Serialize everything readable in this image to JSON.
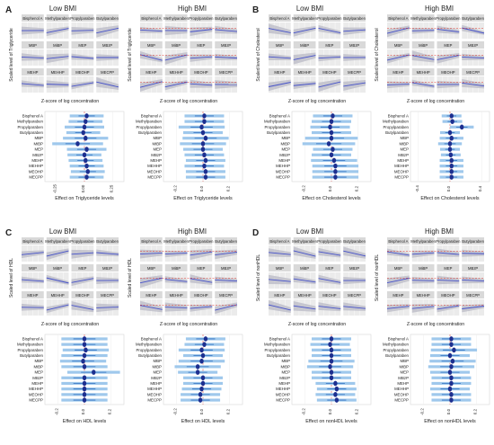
{
  "chart_data": {
    "type": "figure-grid",
    "chemicals": [
      "Bisphenol A",
      "Methylparaben",
      "Propylparaben",
      "Butylparaben",
      "MBP",
      "MiBP",
      "MEP",
      "MBzP",
      "MEHP",
      "MEHHP",
      "MEOHP",
      "MECPP"
    ],
    "groups": [
      "Low BMI",
      "High BMI"
    ],
    "ci_multiplier": 2.5,
    "panels": [
      {
        "letter": "A",
        "outcome": "Triglyceride",
        "scatter_ylabel": "Scaled level of Triglyceride",
        "scatter_xlabel": "Z-score of log concentration",
        "forest": [
          {
            "group": "Low BMI",
            "xlabel": "Effect on Triglyceride levels",
            "xticks": [
              "-0.25",
              "0.00",
              "0.25"
            ],
            "xlim": [
              -0.35,
              0.35
            ],
            "estimates": [
              0.02,
              0.01,
              0.0,
              -0.01,
              0.01,
              -0.06,
              0.02,
              0.0,
              0.01,
              0.02,
              0.03,
              0.02
            ],
            "se": [
              0.06,
              0.06,
              0.07,
              0.06,
              0.08,
              0.09,
              0.07,
              0.06,
              0.06,
              0.06,
              0.06,
              0.06
            ]
          },
          {
            "group": "High BMI",
            "xlabel": "Effect on Triglyceride levels",
            "xticks": [
              "-0.2",
              "0.0",
              "0.2"
            ],
            "xlim": [
              -0.3,
              0.3
            ],
            "estimates": [
              0.01,
              0.01,
              -0.01,
              0.0,
              0.02,
              0.0,
              0.0,
              0.01,
              0.02,
              0.01,
              0.02,
              0.02
            ],
            "se": [
              0.06,
              0.06,
              0.07,
              0.06,
              0.07,
              0.07,
              0.06,
              0.06,
              0.06,
              0.06,
              0.06,
              0.06
            ]
          }
        ]
      },
      {
        "letter": "B",
        "outcome": "Cholesterol",
        "scatter_ylabel": "Scaled level of Cholesterol",
        "scatter_xlabel": "Z-score of log concentration",
        "forest": [
          {
            "group": "Low BMI",
            "xlabel": "Effect on Cholesterol levels",
            "xticks": [
              "-0.2",
              "0.0",
              "0.2"
            ],
            "xlim": [
              -0.3,
              0.3
            ],
            "estimates": [
              0.01,
              0.0,
              -0.01,
              0.0,
              0.0,
              -0.02,
              0.01,
              0.0,
              0.02,
              0.03,
              0.03,
              0.03
            ],
            "se": [
              0.06,
              0.06,
              0.06,
              0.06,
              0.08,
              0.08,
              0.06,
              0.06,
              0.07,
              0.07,
              0.07,
              0.07
            ]
          },
          {
            "group": "High BMI",
            "xlabel": "Effect on Cholesterol levels",
            "xticks": [
              "-0.4",
              "0.0",
              "0.4"
            ],
            "xlim": [
              -0.5,
              0.5
            ],
            "estimates": [
              0.02,
              0.03,
              0.15,
              0.0,
              0.02,
              0.0,
              0.0,
              0.01,
              0.02,
              0.02,
              0.02,
              0.02
            ],
            "se": [
              0.05,
              0.05,
              0.06,
              0.05,
              0.06,
              0.06,
              0.05,
              0.05,
              0.06,
              0.06,
              0.06,
              0.06
            ]
          }
        ]
      },
      {
        "letter": "C",
        "outcome": "HDL",
        "scatter_ylabel": "Scaled level of HDL",
        "scatter_xlabel": "Z-score of log concentration",
        "forest": [
          {
            "group": "Low BMI",
            "xlabel": "Effect on HDL levels",
            "xticks": [
              "-0.2",
              "0.0",
              "0.2"
            ],
            "xlim": [
              -0.3,
              0.3
            ],
            "estimates": [
              0.0,
              0.0,
              0.01,
              0.0,
              -0.01,
              0.0,
              0.07,
              0.0,
              0.0,
              0.0,
              0.0,
              0.0
            ],
            "se": [
              0.07,
              0.07,
              0.07,
              0.07,
              0.07,
              0.07,
              0.08,
              0.07,
              0.07,
              0.07,
              0.07,
              0.07
            ]
          },
          {
            "group": "High BMI",
            "xlabel": "Effect on HDL levels",
            "xticks": [
              "-0.2",
              "0.0",
              "0.2"
            ],
            "xlim": [
              -0.3,
              0.3
            ],
            "estimates": [
              0.02,
              0.01,
              -0.01,
              0.0,
              -0.01,
              -0.04,
              -0.04,
              0.0,
              0.0,
              -0.01,
              -0.02,
              -0.02
            ],
            "se": [
              0.06,
              0.06,
              0.07,
              0.06,
              0.07,
              0.07,
              0.06,
              0.06,
              0.06,
              0.06,
              0.06,
              0.06
            ]
          }
        ]
      },
      {
        "letter": "D",
        "outcome": "nonHDL",
        "scatter_ylabel": "Scaled level of nonHDL",
        "scatter_xlabel": "Z-score of log concentration",
        "forest": [
          {
            "group": "Low BMI",
            "xlabel": "Effect on nonHDL levels",
            "xticks": [
              "-0.2",
              "0.0",
              "0.2"
            ],
            "xlim": [
              -0.3,
              0.3
            ],
            "estimates": [
              0.0,
              -0.01,
              0.0,
              0.0,
              0.0,
              -0.01,
              0.0,
              0.0,
              0.03,
              0.04,
              0.03,
              0.04
            ],
            "se": [
              0.06,
              0.06,
              0.06,
              0.06,
              0.07,
              0.07,
              0.06,
              0.06,
              0.06,
              0.06,
              0.06,
              0.06
            ]
          },
          {
            "group": "High BMI",
            "xlabel": "Effect on nonHDL levels",
            "xticks": [
              "-0.2",
              "0.0",
              "0.2"
            ],
            "xlim": [
              -0.3,
              0.3
            ],
            "estimates": [
              0.01,
              0.01,
              0.03,
              0.0,
              0.02,
              0.01,
              0.0,
              0.01,
              0.01,
              0.0,
              0.01,
              0.01
            ],
            "se": [
              0.06,
              0.06,
              0.07,
              0.06,
              0.07,
              0.07,
              0.06,
              0.06,
              0.06,
              0.06,
              0.06,
              0.06
            ]
          }
        ]
      }
    ]
  }
}
